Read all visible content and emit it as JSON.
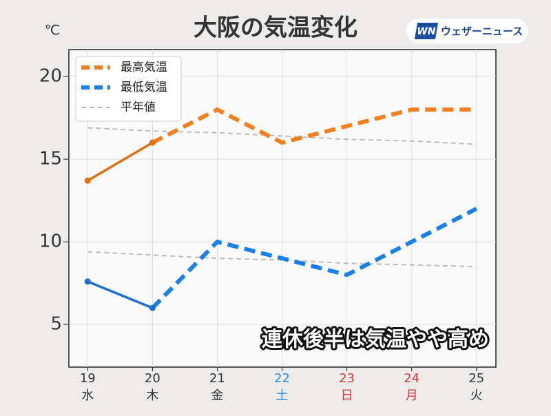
{
  "chart_data": {
    "type": "line",
    "title": "大阪の気温変化",
    "y_unit": "℃",
    "logo_mark": "WN",
    "logo_text": "ウェザーニュース",
    "annotation": "連休後半は気温やや高め",
    "x": [
      19,
      20,
      21,
      22,
      23,
      24,
      25
    ],
    "weekdays": [
      "水",
      "木",
      "金",
      "土",
      "日",
      "月",
      "火"
    ],
    "label_colors": [
      "#333333",
      "#333333",
      "#333333",
      "#2a8ad8",
      "#d83838",
      "#d83838",
      "#333333"
    ],
    "forecast_start": 20,
    "series": [
      {
        "name": "最高気温",
        "color": "#f08020",
        "observed_color": "#e07010",
        "style": "forecast",
        "values": [
          13.7,
          16,
          18,
          16,
          17,
          18,
          18
        ]
      },
      {
        "name": "最低気温",
        "color": "#1a80e8",
        "observed_color": "#1a70d0",
        "style": "forecast",
        "values": [
          7.6,
          6,
          10,
          9,
          8,
          10,
          12
        ]
      },
      {
        "name": "平年値",
        "color": "#bbbbbb",
        "style": "normal",
        "values": [
          16.9,
          16.7,
          16.6,
          16.4,
          16.2,
          16.1,
          15.9
        ]
      },
      {
        "name": "平年値",
        "color": "#bbbbbb",
        "style": "normal",
        "legend": false,
        "values": [
          9.4,
          9.2,
          9.0,
          8.9,
          8.7,
          8.6,
          8.5
        ]
      }
    ],
    "xlim": [
      18.71,
      25.3
    ],
    "ylim": [
      2.42,
      21.63
    ],
    "xticks": [
      19,
      20,
      21,
      22,
      23,
      24,
      25
    ],
    "yticks": [
      5,
      10,
      15,
      20
    ],
    "grid": true,
    "legend": "upper left"
  }
}
